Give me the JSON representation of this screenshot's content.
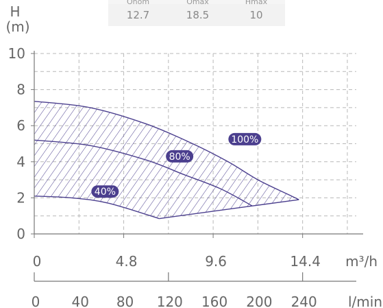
{
  "spec_table": {
    "headers": [
      "Qnom",
      "Qmax",
      "Hmax"
    ],
    "values": [
      "12.7",
      "18.5",
      "10"
    ]
  },
  "chart_data": {
    "type": "area",
    "y_axis": {
      "label_top": "H",
      "label_unit": "(m)",
      "ticks": [
        "10",
        "8",
        "6",
        "4",
        "2",
        "0"
      ],
      "range": [
        0,
        10
      ]
    },
    "x_axis_m3h": {
      "unit": "m³/h",
      "ticks": [
        "0",
        "4.8",
        "9.6",
        "14.4"
      ],
      "range": [
        0,
        17.28
      ]
    },
    "x_axis_lmin": {
      "unit": "l/min",
      "ticks": [
        "0",
        "40",
        "80",
        "120",
        "160",
        "200",
        "240"
      ],
      "range": [
        0,
        288
      ]
    },
    "grid": true,
    "series": [
      {
        "name": "100%",
        "points": [
          [
            0,
            7.35
          ],
          [
            3,
            7.0
          ],
          [
            6,
            6.1
          ],
          [
            8.5,
            5.0
          ],
          [
            10.4,
            4.0
          ],
          [
            12,
            3.0
          ],
          [
            13.6,
            2.2
          ],
          [
            14.2,
            1.9
          ]
        ]
      },
      {
        "name": "80%",
        "points": [
          [
            0,
            5.2
          ],
          [
            3,
            4.9
          ],
          [
            6,
            4.1
          ],
          [
            8,
            3.3
          ],
          [
            10,
            2.5
          ],
          [
            11.7,
            1.55
          ]
        ]
      },
      {
        "name": "40%",
        "points": [
          [
            0,
            2.1
          ],
          [
            2,
            2.0
          ],
          [
            4,
            1.7
          ],
          [
            6.7,
            0.85
          ]
        ]
      }
    ],
    "lower_bound": [
      [
        6.7,
        0.85
      ],
      [
        11.7,
        1.55
      ],
      [
        14.2,
        1.9
      ]
    ],
    "badge_positions_data": [
      {
        "label": "100%",
        "x": 11.3,
        "y": 5.25
      },
      {
        "label": "80%",
        "x": 7.8,
        "y": 4.3
      },
      {
        "label": "40%",
        "x": 3.8,
        "y": 2.35
      }
    ],
    "colors": {
      "curve": "#4b3f8e",
      "badge": "#4b3f8e",
      "badge_text": "#ffffff",
      "grid": "#b8b8b8",
      "axis": "#777777"
    }
  }
}
